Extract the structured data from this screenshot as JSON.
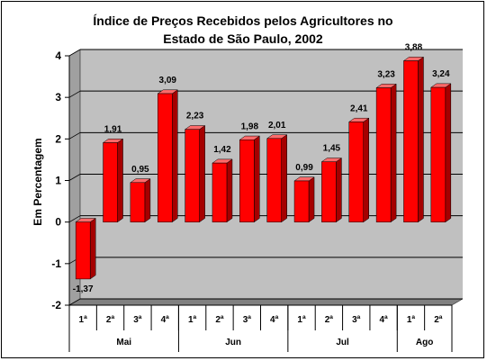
{
  "chart_data": {
    "type": "bar",
    "title_lines": [
      "Índice de Preços Recebidos pelos Agricultores no",
      "Estado de São Paulo, 2002"
    ],
    "ylabel": "Em Percentagem",
    "xlabel": "",
    "ylim": [
      -2,
      4
    ],
    "yticks": [
      "-2",
      "-1",
      "0",
      "1",
      "2",
      "3",
      "4"
    ],
    "grid": true,
    "categories": [
      "1ª",
      "2ª",
      "3ª",
      "4ª",
      "1ª",
      "2ª",
      "3ª",
      "4ª",
      "1ª",
      "2ª",
      "3ª",
      "4ª",
      "1ª",
      "2ª"
    ],
    "groups": [
      {
        "label": "Mai",
        "count": 4
      },
      {
        "label": "Jun",
        "count": 4
      },
      {
        "label": "Jul",
        "count": 4
      },
      {
        "label": "Ago",
        "count": 2
      }
    ],
    "values": [
      -1.37,
      1.91,
      0.95,
      3.09,
      2.23,
      1.42,
      1.98,
      2.01,
      0.99,
      1.45,
      2.41,
      3.23,
      3.88,
      3.24
    ],
    "value_labels": [
      "-1,37",
      "1,91",
      "0,95",
      "3,09",
      "2,23",
      "1,42",
      "1,98",
      "2,01",
      "0,99",
      "1,45",
      "2,41",
      "3,23",
      "3,88",
      "3,24"
    ],
    "colors": {
      "bar_front": "#ff0000",
      "bar_side": "#a50000",
      "bar_top": "#ff6a6a",
      "wall": "#c0c0c0",
      "floor": "#808080",
      "gridline": "#000000"
    }
  }
}
